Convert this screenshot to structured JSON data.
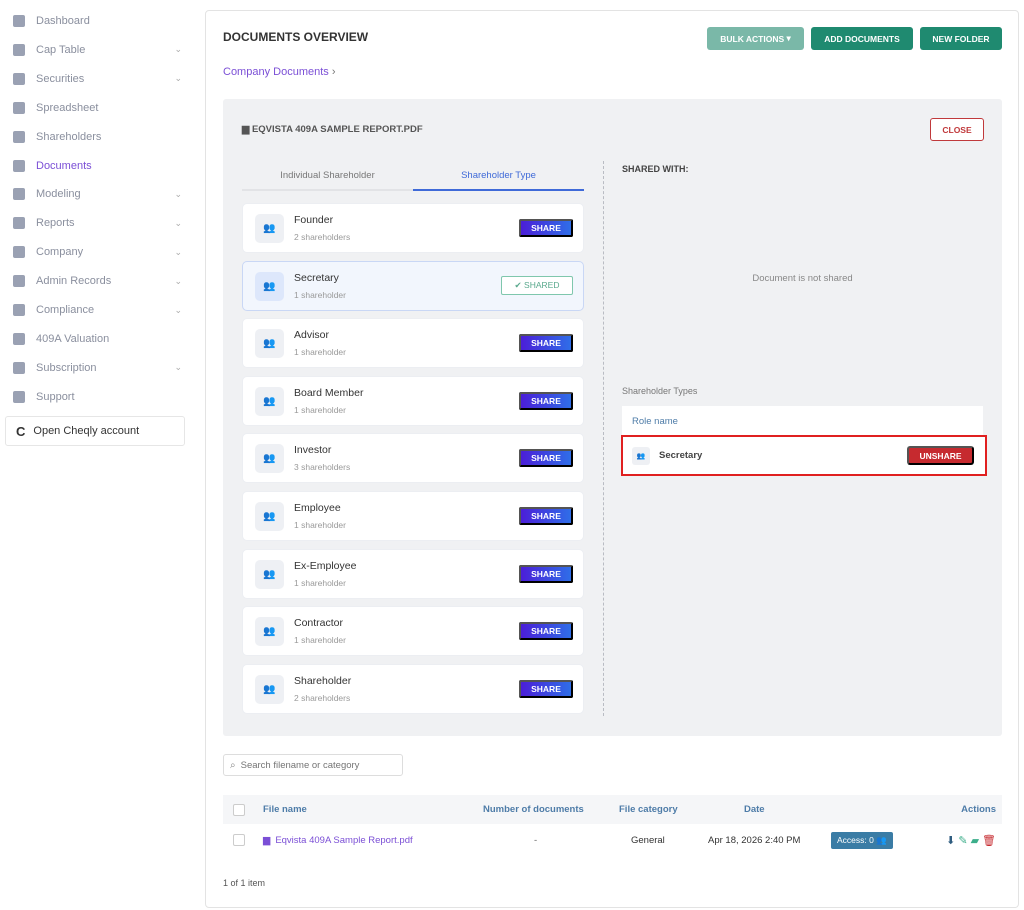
{
  "sidebar": {
    "items": [
      {
        "label": "Dashboard",
        "icon": "dashboard-icon",
        "chevron": false
      },
      {
        "label": "Cap Table",
        "icon": "pie-chart-icon",
        "chevron": true
      },
      {
        "label": "Securities",
        "icon": "clipboard-icon",
        "chevron": true
      },
      {
        "label": "Spreadsheet",
        "icon": "table-icon",
        "chevron": false
      },
      {
        "label": "Shareholders",
        "icon": "user-icon",
        "chevron": false
      },
      {
        "label": "Documents",
        "icon": "folder-icon",
        "chevron": false,
        "active": true
      },
      {
        "label": "Modeling",
        "icon": "lightbulb-icon",
        "chevron": true
      },
      {
        "label": "Reports",
        "icon": "report-icon",
        "chevron": true
      },
      {
        "label": "Company",
        "icon": "building-icon",
        "chevron": true
      },
      {
        "label": "Admin Records",
        "icon": "records-icon",
        "chevron": true
      },
      {
        "label": "Compliance",
        "icon": "shield-icon",
        "chevron": true
      },
      {
        "label": "409A Valuation",
        "icon": "chart-icon",
        "chevron": false
      },
      {
        "label": "Subscription",
        "icon": "dollar-icon",
        "chevron": true
      },
      {
        "label": "Support",
        "icon": "support-icon",
        "chevron": false
      }
    ],
    "cheqly": "Open Cheqly account"
  },
  "header": {
    "title": "DOCUMENTS OVERVIEW",
    "bulk_actions": "BULK ACTIONS",
    "add_documents": "ADD DOCUMENTS",
    "new_folder": "NEW FOLDER",
    "breadcrumb": "Company Documents"
  },
  "panel": {
    "file_name": "EQVISTA 409A SAMPLE REPORT.PDF",
    "close": "CLOSE",
    "tabs": [
      "Individual Shareholder",
      "Shareholder Type"
    ],
    "roles": [
      {
        "name": "Founder",
        "count": "2 shareholders",
        "action": "SHARE"
      },
      {
        "name": "Secretary",
        "count": "1 shareholder",
        "action": "SHARED"
      },
      {
        "name": "Advisor",
        "count": "1 shareholder",
        "action": "SHARE"
      },
      {
        "name": "Board Member",
        "count": "1 shareholder",
        "action": "SHARE"
      },
      {
        "name": "Investor",
        "count": "3 shareholders",
        "action": "SHARE"
      },
      {
        "name": "Employee",
        "count": "1 shareholder",
        "action": "SHARE"
      },
      {
        "name": "Ex-Employee",
        "count": "1 shareholder",
        "action": "SHARE"
      },
      {
        "name": "Contractor",
        "count": "1 shareholder",
        "action": "SHARE"
      },
      {
        "name": "Shareholder",
        "count": "2 shareholders",
        "action": "SHARE"
      }
    ],
    "shared_with": "SHARED WITH:",
    "not_shared": "Document is not shared",
    "shareholder_types": "Shareholder Types",
    "role_name": "Role name",
    "shared_roles": [
      {
        "name": "Secretary",
        "action": "UNSHARE"
      }
    ]
  },
  "search": {
    "placeholder": "Search filename or category"
  },
  "table": {
    "headers": [
      "File name",
      "Number of documents",
      "File category",
      "Date",
      "Actions"
    ],
    "rows": [
      {
        "file": "Eqvista 409A Sample Report.pdf",
        "num": "-",
        "category": "General",
        "date": "Apr 18, 2026 2:40 PM",
        "access": "Access: 0"
      }
    ],
    "pager": "1 of 1 item"
  },
  "colors": {
    "accent": "#7b4fd6",
    "teal": "#1f8a70",
    "share": "#4b1ed8",
    "danger": "#c62a2f",
    "highlight": "#e02020"
  }
}
